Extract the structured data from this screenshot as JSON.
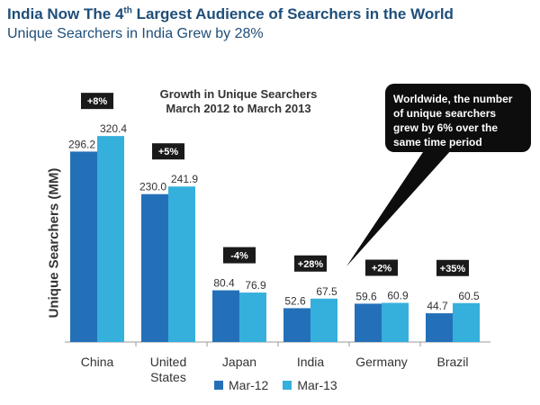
{
  "header": {
    "title_main": "India Now The 4",
    "title_sup": "th",
    "title_rest": " Largest Audience of Searchers in the World",
    "subtitle": "Unique Searchers in India Grew by 28%"
  },
  "callout": {
    "lines": [
      "Worldwide, the number",
      "of unique searchers",
      "grew by 6% over the",
      "same time period"
    ]
  },
  "chart_data": {
    "type": "bar",
    "title": "Growth in Unique Searchers",
    "subtitle": "March 2012 to March 2013",
    "xlabel": "",
    "ylabel": "Unique Searchers (MM)",
    "ylim": [
      0,
      350
    ],
    "grid": false,
    "legend_position": "bottom",
    "categories": [
      [
        "China"
      ],
      [
        "United",
        "States"
      ],
      [
        "Japan"
      ],
      [
        "India"
      ],
      [
        "Germany"
      ],
      [
        "Brazil"
      ]
    ],
    "series": [
      {
        "name": "Mar-12",
        "color": "#2470b8",
        "values": [
          296.2,
          230.0,
          80.4,
          52.6,
          59.6,
          44.7
        ]
      },
      {
        "name": "Mar-13",
        "color": "#35b0dc",
        "values": [
          320.4,
          241.9,
          76.9,
          67.5,
          60.9,
          60.5
        ]
      }
    ],
    "value_labels": [
      [
        "296.2",
        "230.0",
        "80.4",
        "52.6",
        "59.6",
        "44.7"
      ],
      [
        "320.4",
        "241.9",
        "76.9",
        "67.5",
        "60.9",
        "60.5"
      ]
    ],
    "growth_labels": [
      "+8%",
      "+5%",
      "-4%",
      "+28%",
      "+2%",
      "+35%"
    ]
  }
}
